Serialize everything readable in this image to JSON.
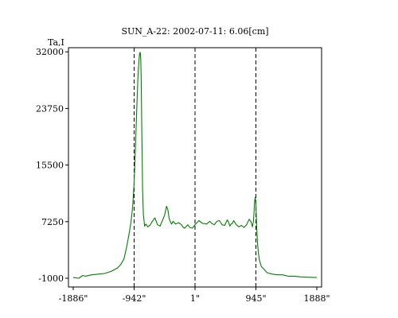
{
  "chart_data": {
    "type": "line",
    "title": "SUN_A-22: 2002-07-11: 6.06[cm]",
    "ylabel": "Ta,I",
    "xlabel": "",
    "x_tick_labels": [
      "-1886\"",
      "-942\"",
      "1\"",
      "945\"",
      "1888\""
    ],
    "x_ticks": [
      -1886,
      -942,
      1,
      945,
      1888
    ],
    "y_ticks": [
      -1000,
      7250,
      15500,
      23750,
      32000
    ],
    "y_tick_labels": [
      "-1000",
      "7250",
      "15500",
      "23750",
      "32000"
    ],
    "xlim": [
      -1886,
      1888
    ],
    "ylim": [
      -1000,
      32600
    ],
    "vlines": [
      -942,
      1,
      945
    ],
    "grid": false,
    "series": [
      {
        "color": "#008000",
        "x": [
          -1886,
          -1800,
          -1740,
          -1700,
          -1600,
          -1500,
          -1400,
          -1300,
          -1200,
          -1150,
          -1100,
          -1060,
          -1020,
          -990,
          -965,
          -945,
          -930,
          -915,
          -900,
          -885,
          -870,
          -857,
          -848,
          -840,
          -833,
          -825,
          -812,
          -800,
          -780,
          -760,
          -730,
          -700,
          -660,
          -620,
          -580,
          -540,
          -500,
          -470,
          -440,
          -420,
          -400,
          -380,
          -360,
          -340,
          -300,
          -250,
          -210,
          -180,
          -160,
          -140,
          -110,
          -80,
          -40,
          1,
          60,
          120,
          180,
          230,
          260,
          300,
          340,
          380,
          420,
          460,
          500,
          520,
          540,
          560,
          580,
          600,
          640,
          680,
          720,
          760,
          800,
          840,
          870,
          890,
          905,
          915,
          925,
          935,
          945,
          955,
          970,
          985,
          1000,
          1030,
          1070,
          1120,
          1200,
          1280,
          1360,
          1440,
          1540,
          1640,
          1750,
          1888
        ],
        "y": [
          -900,
          -1000,
          -600,
          -700,
          -500,
          -400,
          -300,
          0,
          500,
          1000,
          1800,
          3500,
          5500,
          7200,
          9500,
          12500,
          16000,
          20000,
          24000,
          28000,
          30500,
          31800,
          31900,
          31000,
          28000,
          22000,
          12000,
          8300,
          6600,
          6900,
          6500,
          6700,
          7300,
          7800,
          6800,
          6600,
          7500,
          8200,
          9500,
          9000,
          7700,
          7200,
          6900,
          7300,
          6900,
          7100,
          6800,
          6400,
          6300,
          6500,
          6800,
          6400,
          6300,
          6800,
          7400,
          7000,
          6900,
          7300,
          7000,
          6800,
          7300,
          7400,
          6800,
          6700,
          7500,
          7200,
          6600,
          6900,
          7000,
          7400,
          6800,
          6500,
          6700,
          6400,
          6800,
          7600,
          7200,
          6500,
          7200,
          8500,
          10300,
          10800,
          9800,
          6600,
          4000,
          2500,
          1600,
          700,
          300,
          -200,
          -400,
          -500,
          -500,
          -700,
          -700,
          -800,
          -850,
          -900
        ]
      }
    ]
  }
}
